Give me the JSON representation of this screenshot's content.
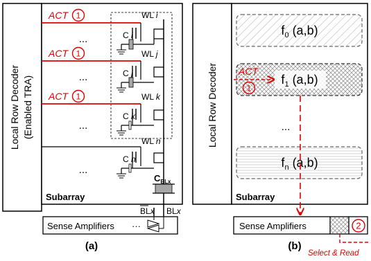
{
  "panel_a": {
    "decoder_line1": "Local Row Decoder",
    "decoder_line2": "(Enabled TRA)",
    "act_label": "ACT",
    "act_step": "1",
    "wordlines": [
      {
        "wl": "WL ",
        "wl_sub": "i",
        "cap": "C ",
        "cap_sub": "i"
      },
      {
        "wl": "WL ",
        "wl_sub": "j",
        "cap": "C ",
        "cap_sub": "j"
      },
      {
        "wl": "WL ",
        "wl_sub": "k",
        "cap": "C ",
        "cap_sub": "k"
      },
      {
        "wl": "WL ",
        "wl_sub": "n",
        "cap": "C ",
        "cap_sub": "n"
      }
    ],
    "ellipsis": "...",
    "cbl_label": "C",
    "cbl_sub": "BLx",
    "bl_bar": "BL",
    "bl_bar_sub": "x",
    "bl": "BL",
    "bl_sub": "x",
    "subarray": "Subarray",
    "sense_amp": "Sense Amplifiers",
    "sense_dots": "···",
    "caption": "(a)"
  },
  "panel_b": {
    "decoder": "Local Row Decoder",
    "rows": [
      {
        "f": "f",
        "sub": "0",
        "args": " (a,b)"
      },
      {
        "f": "f",
        "sub": "1",
        "args": " (a,b)"
      },
      {
        "f": "f",
        "sub": "n",
        "args": " (a,b)"
      }
    ],
    "ellipsis": "...",
    "act_label": "ACT",
    "act_step": "1",
    "subarray": "Subarray",
    "sense_amp": "Sense Amplifiers",
    "step2": "2",
    "select_read": "Select & Read",
    "caption": "(b)"
  },
  "colors": {
    "accent": "#e00000",
    "ink": "#000000",
    "gray": "#a6a6a6"
  }
}
